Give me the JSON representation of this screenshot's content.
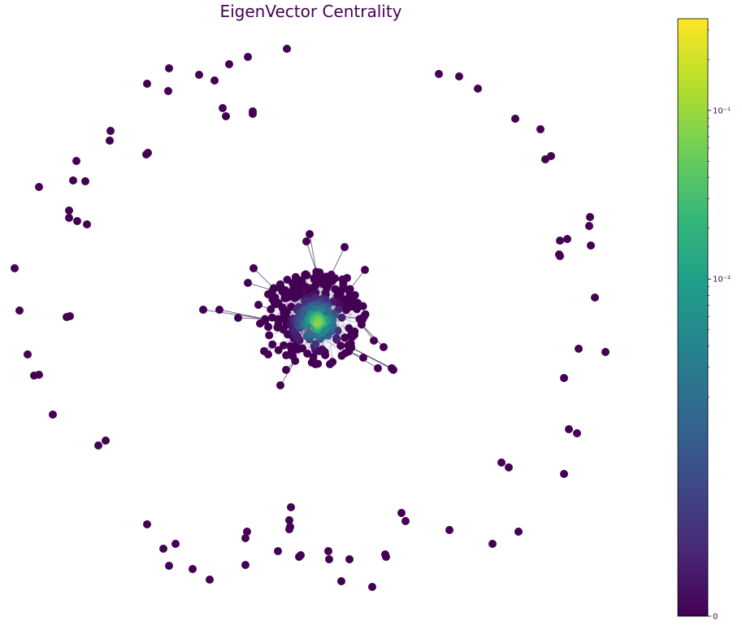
{
  "chart_data": {
    "type": "scatter",
    "title": "EigenVector Centrality",
    "colormap": "viridis",
    "node_color": "#440154",
    "colorbar": {
      "scale": "symlog",
      "range": [
        0,
        0.35
      ],
      "tick_labels": [
        "0",
        "10⁻²",
        "10⁻¹"
      ],
      "tick_values": [
        0,
        0.01,
        0.1
      ]
    },
    "viridis_stops": [
      "#440154",
      "#482878",
      "#3e4989",
      "#31688e",
      "#26828e",
      "#1f9e89",
      "#35b779",
      "#6ece58",
      "#b5de2b",
      "#fde725"
    ]
  }
}
